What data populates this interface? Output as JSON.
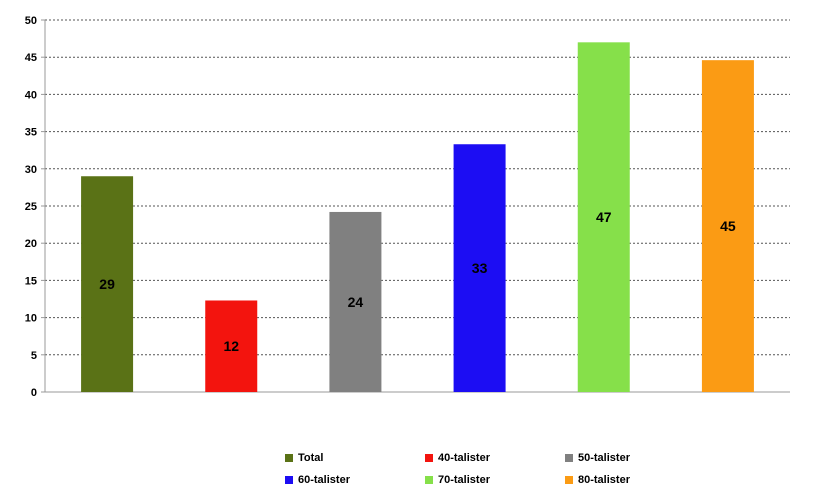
{
  "chart_data": {
    "type": "bar",
    "categories": [
      "Total",
      "40-talister",
      "50-talister",
      "60-talister",
      "70-talister",
      "80-talister"
    ],
    "values": [
      29,
      12.3,
      24.2,
      33.3,
      47,
      44.6
    ],
    "data_labels": [
      "29",
      "12",
      "24",
      "33",
      "47",
      "45"
    ],
    "colors": [
      "#5a7216",
      "#f3140e",
      "#808080",
      "#1c0df3",
      "#86e04a",
      "#fb9b14"
    ],
    "legend": {
      "placement": "bottom",
      "entries": [
        "Total",
        "40-talister",
        "50-talister",
        "60-talister",
        "70-talister",
        "80-talister"
      ]
    },
    "y_ticks": [
      "0",
      "5",
      "10",
      "15",
      "20",
      "25",
      "30",
      "35",
      "40",
      "45",
      "50"
    ],
    "ylim": [
      0,
      50
    ],
    "grid": true,
    "title": "",
    "xlabel": "",
    "ylabel": ""
  }
}
